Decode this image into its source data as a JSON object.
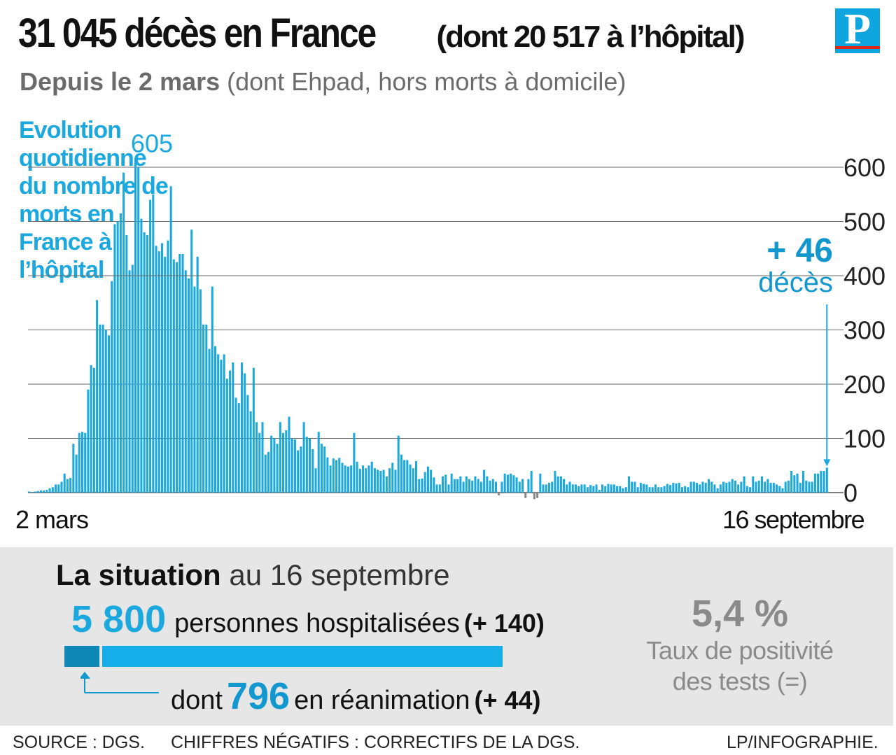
{
  "header": {
    "title": "31 045 décès  en France",
    "title_sub": "(dont 20 517 à l’hôpital)",
    "subtitle_bold": "Depuis le 2 mars",
    "subtitle_rest": " (dont Ehpad, hors morts à domicile)",
    "logo_letter": "P"
  },
  "chart_data": {
    "type": "bar",
    "title": "Evolution quotidienne du nombre de morts en France à l’hôpital",
    "bar_color": "#1ba8df",
    "negative_color": "#888888",
    "grid": true,
    "y_axis_side": "right",
    "ylim": [
      0,
      600
    ],
    "y_ticks": [
      "0",
      "100",
      "200",
      "300",
      "400",
      "500",
      "600"
    ],
    "x_start_label": "2 mars",
    "x_end_label": "16 septembre",
    "peak_label": "605",
    "last_callout_value": "+ 46",
    "last_callout_unit": "décès",
    "values": [
      2,
      1,
      2,
      3,
      4,
      4,
      5,
      8,
      10,
      15,
      15,
      20,
      35,
      25,
      27,
      90,
      70,
      110,
      112,
      110,
      190,
      235,
      230,
      355,
      310,
      310,
      300,
      290,
      390,
      495,
      500,
      515,
      590,
      475,
      410,
      420,
      615,
      600,
      505,
      480,
      475,
      540,
      550,
      455,
      445,
      460,
      435,
      465,
      565,
      430,
      425,
      440,
      440,
      410,
      395,
      485,
      380,
      435,
      375,
      310,
      310,
      265,
      380,
      270,
      255,
      245,
      255,
      210,
      225,
      240,
      175,
      165,
      240,
      220,
      180,
      150,
      230,
      130,
      110,
      130,
      70,
      75,
      105,
      100,
      90,
      130,
      110,
      115,
      140,
      100,
      98,
      78,
      85,
      130,
      103,
      100,
      80,
      45,
      112,
      90,
      85,
      65,
      50,
      63,
      60,
      64,
      55,
      50,
      48,
      50,
      110,
      57,
      44,
      50,
      45,
      50,
      57,
      45,
      42,
      40,
      42,
      30,
      45,
      55,
      42,
      105,
      70,
      60,
      60,
      52,
      45,
      58,
      25,
      26,
      38,
      48,
      42,
      28,
      15,
      15,
      30,
      33,
      15,
      35,
      25,
      25,
      30,
      20,
      30,
      25,
      22,
      30,
      25,
      20,
      42,
      30,
      22,
      25,
      20,
      -5,
      20,
      35,
      33,
      35,
      32,
      28,
      20,
      25,
      -10,
      25,
      40,
      -12,
      -10,
      35,
      15,
      15,
      18,
      20,
      40,
      30,
      30,
      25,
      15,
      20,
      15,
      15,
      12,
      15,
      15,
      10,
      14,
      12,
      15,
      5,
      15,
      12,
      16,
      15,
      15,
      12,
      12,
      8,
      10,
      30,
      20,
      20,
      10,
      18,
      16,
      15,
      10,
      10,
      15,
      10,
      10,
      12,
      16,
      14,
      18,
      17,
      18,
      10,
      12,
      10,
      20,
      20,
      18,
      15,
      20,
      18,
      25,
      20,
      15,
      8,
      15,
      20,
      18,
      20,
      25,
      22,
      15,
      20,
      30,
      12,
      10,
      30,
      20,
      22,
      30,
      20,
      25,
      18,
      18,
      15,
      12,
      8,
      20,
      22,
      40,
      32,
      35,
      18,
      40,
      22,
      20,
      20,
      35,
      35,
      40,
      40,
      46
    ]
  },
  "situation": {
    "heading_bold": "La situation",
    "heading_rest": " au 16 septembre",
    "hospitalized_value": "5 800",
    "hospitalized_label": "personnes hospitalisées",
    "hospitalized_delta": "(+ 140)",
    "icu_prefix": "dont",
    "icu_value": "796",
    "icu_label": "en réanimation",
    "icu_delta": "(+ 44)",
    "icu_share": 0.137,
    "positivity_value": "5,4 %",
    "positivity_label_line1": "Taux de positivité",
    "positivity_label_line2": "des tests (=)"
  },
  "footer": {
    "source": "SOURCE : DGS.",
    "note": "CHIFFRES NÉGATIFS : CORRECTIFS DE LA DGS.",
    "credit": "LP/INFOGRAPHIE."
  }
}
